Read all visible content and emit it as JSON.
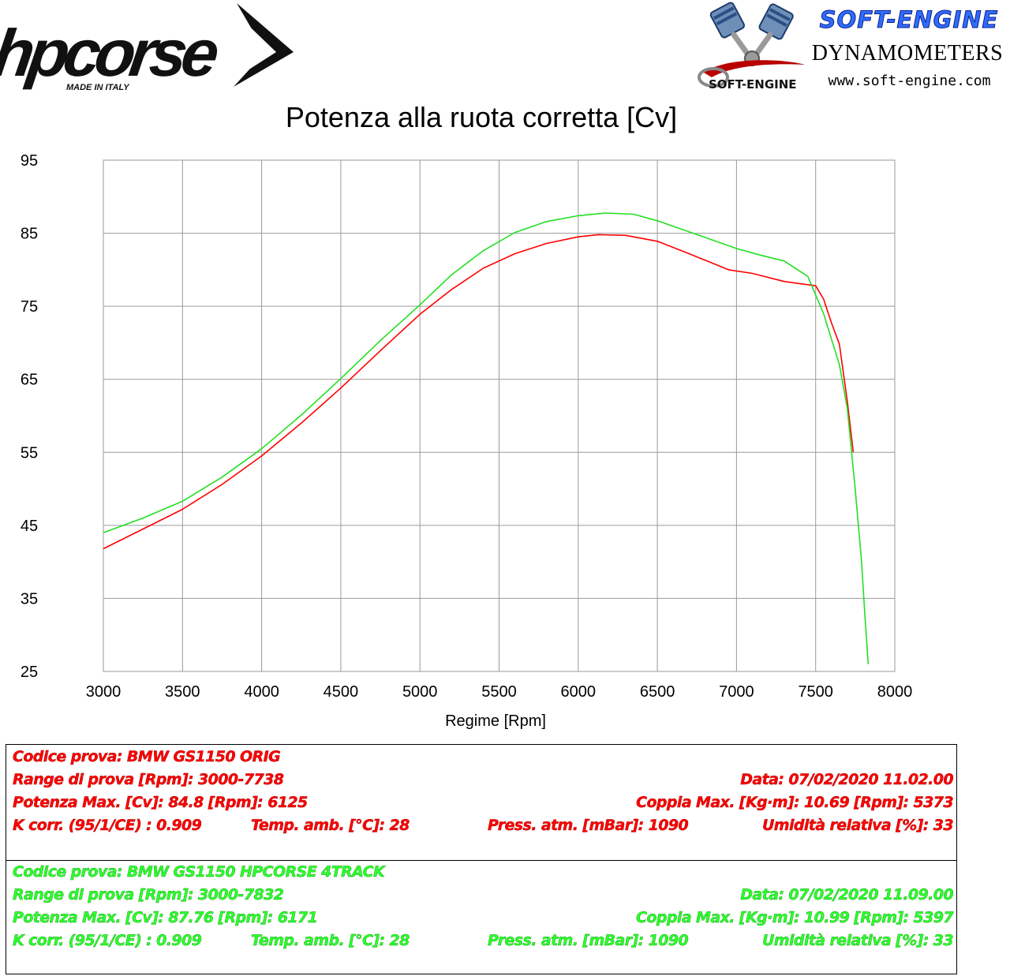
{
  "logos": {
    "hpcorse_brand": "hpcorse",
    "hpcorse_tagline": "MADE IN ITALY",
    "softengine_brand": "SOFT-ENGINE",
    "softengine_sub": "DYNAMOMETERS",
    "softengine_url": "www.soft-engine.com",
    "softengine_mark": "SOFT-ENGINE"
  },
  "chart_data": {
    "type": "line",
    "title": "Potenza alla ruota corretta [Cv]",
    "xlabel": "Regime [Rpm]",
    "ylabel": "",
    "xlim": [
      3000,
      8000
    ],
    "ylim": [
      25,
      95
    ],
    "xticks": [
      "3000",
      "3500",
      "4000",
      "4500",
      "5000",
      "5500",
      "6000",
      "6500",
      "7000",
      "7500",
      "8000"
    ],
    "yticks": [
      "95",
      "85",
      "75",
      "65",
      "55",
      "45",
      "35",
      "25"
    ],
    "grid": true,
    "series": [
      {
        "name": "BMW GS1150 ORIG",
        "color": "#ff0000",
        "x": [
          3000,
          3250,
          3500,
          3750,
          4000,
          4250,
          4500,
          4750,
          5000,
          5200,
          5400,
          5600,
          5800,
          6000,
          6125,
          6300,
          6500,
          6700,
          6950,
          7100,
          7300,
          7500,
          7550,
          7600,
          7650,
          7700,
          7738
        ],
        "y": [
          41.8,
          44.5,
          47.2,
          50.6,
          54.5,
          59.0,
          63.8,
          68.9,
          73.9,
          77.3,
          80.2,
          82.2,
          83.6,
          84.5,
          84.8,
          84.7,
          83.9,
          82.2,
          80.0,
          79.5,
          78.4,
          77.8,
          76.0,
          72.7,
          69.8,
          62.0,
          55.0
        ]
      },
      {
        "name": "BMW GS1150 HPCORSE 4TRACK",
        "color": "#22e022",
        "x": [
          3000,
          3250,
          3500,
          3750,
          4000,
          4250,
          4500,
          4750,
          5000,
          5200,
          5400,
          5600,
          5800,
          6000,
          6171,
          6350,
          6500,
          6700,
          7000,
          7150,
          7300,
          7450,
          7550,
          7650,
          7700,
          7750,
          7790,
          7810,
          7832
        ],
        "y": [
          44.0,
          46.0,
          48.3,
          51.6,
          55.5,
          60.1,
          65.1,
          70.3,
          75.2,
          79.3,
          82.6,
          85.1,
          86.6,
          87.4,
          87.76,
          87.6,
          86.7,
          85.2,
          82.9,
          82.0,
          81.2,
          79.1,
          74.0,
          67.0,
          61.0,
          50.0,
          40.0,
          33.0,
          26.0
        ]
      }
    ]
  },
  "tests": [
    {
      "color": "#ff0000",
      "codice": "Codice prova: BMW GS1150 ORIG",
      "range": "Range di prova [Rpm]: 3000-7738",
      "data": "Data: 07/02/2020   11.02.00",
      "potenza": "Potenza Max. [Cv]: 84.8   [Rpm]: 6125",
      "coppia": "Coppia Max. [Kg·m]: 10.69   [Rpm]: 5373",
      "kcorr": "K corr. (95/1/CE) : 0.909",
      "temp": "Temp. amb. [°C]: 28",
      "press": "Press. atm. [mBar]: 1090",
      "umid": "Umidità relativa [%]: 33"
    },
    {
      "color": "#22e022",
      "codice": "Codice prova: BMW GS1150 HPCORSE 4TRACK",
      "range": "Range di prova [Rpm]: 3000-7832",
      "data": "Data: 07/02/2020   11.09.00",
      "potenza": "Potenza Max. [Cv]: 87.76   [Rpm]: 6171",
      "coppia": "Coppia Max. [Kg·m]: 10.99   [Rpm]: 5397",
      "kcorr": "K corr. (95/1/CE) : 0.909",
      "temp": "Temp. amb. [°C]: 28",
      "press": "Press. atm. [mBar]: 1090",
      "umid": "Umidità relativa [%]: 33"
    }
  ]
}
